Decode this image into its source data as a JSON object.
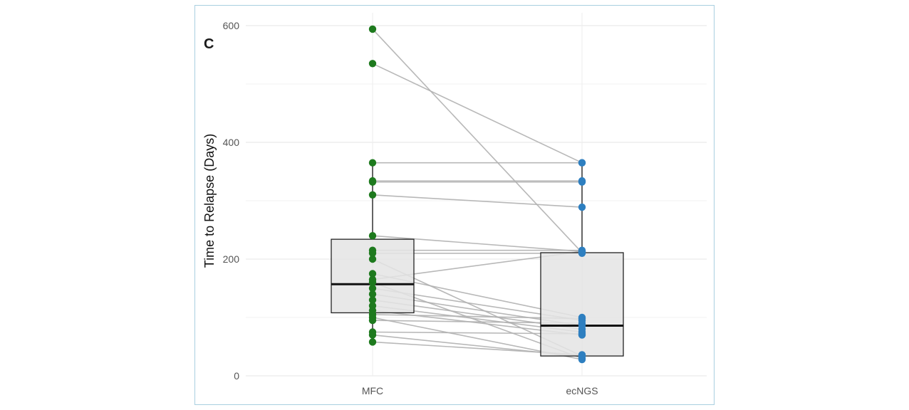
{
  "panel_label": "C",
  "chart_data": {
    "type": "boxplot-paired",
    "title": "",
    "xlabel": "",
    "ylabel": "Time to Relapse (Days)",
    "categories": [
      "MFC",
      "ecNGS"
    ],
    "ylim": [
      0,
      600
    ],
    "yticks": [
      0,
      200,
      400,
      600
    ],
    "grid": true,
    "colors": {
      "MFC": "#1e7a1e",
      "ecNGS": "#2e7fc0",
      "line": "#b0b0b0",
      "box_fill": "#e4e4e4",
      "box_edge": "#222222"
    },
    "boxes": [
      {
        "name": "MFC",
        "q1": 108,
        "median": 157,
        "q3": 234,
        "whisker_low": 58,
        "whisker_high": 365
      },
      {
        "name": "ecNGS",
        "q1": 34,
        "median": 86,
        "q3": 211,
        "whisker_low": 24,
        "whisker_high": 365
      }
    ],
    "pairs": [
      [
        594,
        211
      ],
      [
        535,
        365
      ],
      [
        365,
        365
      ],
      [
        334,
        334
      ],
      [
        332,
        332
      ],
      [
        310,
        289
      ],
      [
        240,
        213
      ],
      [
        215,
        215
      ],
      [
        210,
        210
      ],
      [
        200,
        34
      ],
      [
        175,
        100
      ],
      [
        165,
        213
      ],
      [
        160,
        30
      ],
      [
        150,
        95
      ],
      [
        140,
        86
      ],
      [
        130,
        80
      ],
      [
        120,
        75
      ],
      [
        112,
        70
      ],
      [
        105,
        98
      ],
      [
        100,
        28
      ],
      [
        95,
        90
      ],
      [
        75,
        72
      ],
      [
        70,
        33
      ],
      [
        58,
        36
      ]
    ]
  }
}
